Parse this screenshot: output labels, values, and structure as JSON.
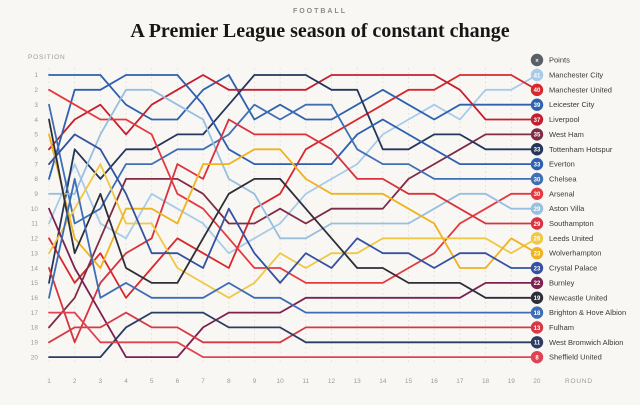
{
  "header": {
    "kicker": "FOOTBALL",
    "title": "A Premier League season of constant change"
  },
  "axes": {
    "y_label": "POSITION",
    "x_label": "ROUND",
    "positions": [
      1,
      2,
      3,
      4,
      5,
      6,
      7,
      8,
      9,
      10,
      11,
      12,
      13,
      14,
      15,
      16,
      17,
      18,
      19,
      20
    ],
    "rounds": [
      1,
      2,
      3,
      4,
      5,
      6,
      7,
      8,
      9,
      10,
      11,
      12,
      13,
      14,
      15,
      16,
      17,
      18,
      19,
      20
    ]
  },
  "legend": {
    "header_symbol": "×",
    "header_label": "Points"
  },
  "chart_data": {
    "type": "line",
    "subtype": "bump-chart",
    "title": "A Premier League season of constant change",
    "xlabel": "ROUND",
    "ylabel": "POSITION",
    "x": [
      1,
      2,
      3,
      4,
      5,
      6,
      7,
      8,
      9,
      10,
      11,
      12,
      13,
      14,
      15,
      16,
      17,
      18,
      19,
      20
    ],
    "y_axis_inverted": true,
    "ylim": [
      1,
      20
    ],
    "grid": "vertical-dashed",
    "legend_position": "right",
    "series": [
      {
        "name": "Manchester City",
        "points": 41,
        "color": "#a8cbe9",
        "positions": [
          11,
          7,
          11,
          12,
          9,
          10,
          11,
          13,
          12,
          11,
          9,
          8,
          7,
          5,
          4,
          3,
          4,
          2,
          2,
          1
        ]
      },
      {
        "name": "Manchester United",
        "points": 40,
        "color": "#d7282d",
        "positions": [
          12,
          15,
          13,
          16,
          14,
          12,
          13,
          14,
          10,
          9,
          6,
          5,
          4,
          3,
          2,
          2,
          1,
          1,
          1,
          2
        ]
      },
      {
        "name": "Leicester City",
        "points": 39,
        "color": "#2f62ad",
        "positions": [
          1,
          1,
          1,
          3,
          4,
          4,
          2,
          1,
          4,
          3,
          4,
          4,
          3,
          2,
          3,
          4,
          3,
          3,
          3,
          3
        ]
      },
      {
        "name": "Liverpool",
        "points": 37,
        "color": "#c41f30",
        "positions": [
          6,
          4,
          3,
          5,
          3,
          2,
          1,
          2,
          2,
          2,
          2,
          1,
          1,
          1,
          1,
          1,
          2,
          4,
          4,
          4
        ]
      },
      {
        "name": "West Ham",
        "points": 35,
        "color": "#7e2c47",
        "positions": [
          18,
          16,
          12,
          8,
          8,
          8,
          9,
          11,
          11,
          10,
          11,
          10,
          10,
          10,
          8,
          7,
          6,
          5,
          5,
          5
        ]
      },
      {
        "name": "Tottenham Hotspur",
        "points": 33,
        "color": "#26365b",
        "positions": [
          15,
          6,
          8,
          6,
          6,
          5,
          5,
          3,
          1,
          1,
          1,
          2,
          2,
          6,
          6,
          5,
          5,
          6,
          6,
          6
        ]
      },
      {
        "name": "Everton",
        "points": 33,
        "color": "#2f5fb0",
        "positions": [
          8,
          2,
          2,
          1,
          1,
          1,
          3,
          6,
          7,
          7,
          7,
          7,
          5,
          4,
          5,
          6,
          7,
          7,
          7,
          7
        ]
      },
      {
        "name": "Chelsea",
        "points": 30,
        "color": "#3f6fb5",
        "positions": [
          3,
          11,
          10,
          7,
          7,
          6,
          6,
          5,
          3,
          4,
          3,
          3,
          6,
          7,
          7,
          8,
          8,
          8,
          8,
          8
        ]
      },
      {
        "name": "Arsenal",
        "points": 30,
        "color": "#e23b3f",
        "positions": [
          2,
          3,
          4,
          4,
          5,
          9,
          10,
          12,
          14,
          14,
          15,
          15,
          15,
          15,
          14,
          13,
          11,
          10,
          9,
          9
        ]
      },
      {
        "name": "Aston Villa",
        "points": 29,
        "color": "#96bfe0",
        "positions": [
          9,
          9,
          5,
          2,
          2,
          3,
          4,
          8,
          9,
          12,
          12,
          11,
          11,
          11,
          11,
          10,
          9,
          9,
          10,
          10
        ]
      },
      {
        "name": "Southampton",
        "points": 29,
        "color": "#d8333e",
        "positions": [
          14,
          19,
          15,
          13,
          12,
          7,
          8,
          4,
          5,
          5,
          5,
          6,
          8,
          8,
          9,
          9,
          10,
          11,
          11,
          11
        ]
      },
      {
        "name": "Leeds United",
        "points": 26,
        "color": "#efc844",
        "positions": [
          13,
          10,
          7,
          11,
          11,
          14,
          15,
          16,
          15,
          13,
          14,
          13,
          13,
          12,
          12,
          12,
          12,
          12,
          13,
          12
        ]
      },
      {
        "name": "Wolverhampton",
        "points": 23,
        "color": "#eeb320",
        "positions": [
          5,
          12,
          14,
          10,
          10,
          11,
          7,
          7,
          6,
          6,
          8,
          9,
          9,
          9,
          10,
          11,
          14,
          14,
          12,
          13
        ]
      },
      {
        "name": "Crystal Palace",
        "points": 23,
        "color": "#35519f",
        "positions": [
          7,
          5,
          6,
          9,
          13,
          13,
          14,
          10,
          13,
          15,
          13,
          14,
          12,
          13,
          13,
          14,
          13,
          13,
          14,
          14
        ]
      },
      {
        "name": "Burnley",
        "points": 22,
        "color": "#7c2150",
        "positions": [
          10,
          14,
          17,
          20,
          20,
          20,
          18,
          17,
          17,
          17,
          16,
          16,
          16,
          16,
          16,
          16,
          16,
          15,
          15,
          15
        ]
      },
      {
        "name": "Newcastle United",
        "points": 19,
        "color": "#2e2e38",
        "positions": [
          4,
          13,
          9,
          14,
          15,
          15,
          12,
          9,
          8,
          8,
          10,
          12,
          14,
          14,
          15,
          15,
          15,
          16,
          16,
          16
        ]
      },
      {
        "name": "Brighton & Hove Albion",
        "points": 18,
        "color": "#3e6db8",
        "positions": [
          16,
          8,
          16,
          15,
          16,
          16,
          16,
          15,
          16,
          16,
          17,
          17,
          17,
          17,
          17,
          17,
          17,
          17,
          17,
          17
        ]
      },
      {
        "name": "Fulham",
        "points": 13,
        "color": "#d63945",
        "positions": [
          19,
          18,
          18,
          17,
          18,
          18,
          19,
          19,
          19,
          19,
          18,
          18,
          18,
          18,
          18,
          18,
          18,
          18,
          18,
          18
        ]
      },
      {
        "name": "West Bromwich Albion",
        "points": 11,
        "color": "#2c3d63",
        "positions": [
          20,
          20,
          20,
          18,
          17,
          17,
          17,
          18,
          18,
          18,
          19,
          19,
          19,
          19,
          19,
          19,
          19,
          19,
          19,
          19
        ]
      },
      {
        "name": "Sheffield United",
        "points": 8,
        "color": "#e04353",
        "positions": [
          17,
          17,
          19,
          19,
          19,
          19,
          20,
          20,
          20,
          20,
          20,
          20,
          20,
          20,
          20,
          20,
          20,
          20,
          20,
          20
        ]
      }
    ]
  }
}
